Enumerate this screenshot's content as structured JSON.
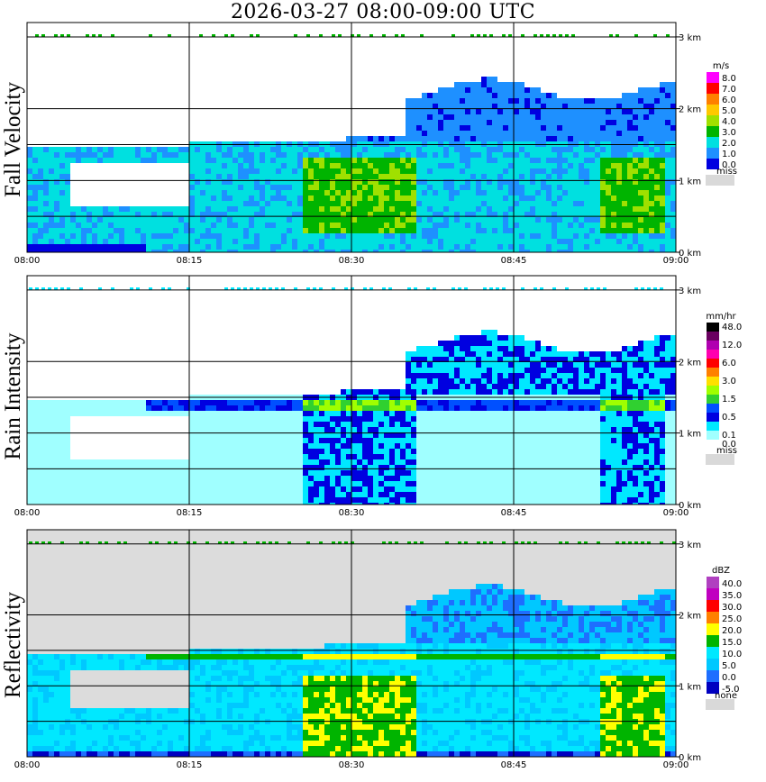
{
  "title": "2026-03-27   08:00-09:00 UTC",
  "time_ticks": [
    "08:00",
    "08:15",
    "08:30",
    "08:45",
    "09:00"
  ],
  "height_ticks": [
    "3 km",
    "2 km",
    "1 km",
    "0 km"
  ],
  "panels": [
    {
      "id": "fall-velocity",
      "label": "Fall Velocity",
      "unit": "m/s",
      "background": "#ffffff",
      "colorbar": [
        {
          "label": "8.0",
          "color": "#ff00ff"
        },
        {
          "label": "7.0",
          "color": "#ff0000"
        },
        {
          "label": "6.0",
          "color": "#ff8000"
        },
        {
          "label": "5.0",
          "color": "#ffc800"
        },
        {
          "label": "4.0",
          "color": "#a0e000"
        },
        {
          "label": "3.0",
          "color": "#00b400"
        },
        {
          "label": "2.0",
          "color": "#00e0e0"
        },
        {
          "label": "1.0",
          "color": "#1e90ff"
        },
        {
          "label": "0.0",
          "color": "#0000e0"
        }
      ],
      "miss_label": "miss",
      "miss_color": "#d9d9d9"
    },
    {
      "id": "rain-intensity",
      "label": "Rain Intensity",
      "unit": "mm/hr",
      "background": "#ffffff",
      "colorbar": [
        {
          "label": "48.0",
          "color": "#000000"
        },
        {
          "label": "",
          "color": "#6a0060"
        },
        {
          "label": "12.0",
          "color": "#b000b0"
        },
        {
          "label": "",
          "color": "#ff00b0"
        },
        {
          "label": "6.0",
          "color": "#ff0000"
        },
        {
          "label": "",
          "color": "#ff8000"
        },
        {
          "label": "3.0",
          "color": "#ffe000"
        },
        {
          "label": "",
          "color": "#a0ff00"
        },
        {
          "label": "1.5",
          "color": "#30d030"
        },
        {
          "label": "",
          "color": "#0050ff"
        },
        {
          "label": "0.5",
          "color": "#0000e0"
        },
        {
          "label": "",
          "color": "#00e8ff"
        },
        {
          "label": "0.1",
          "color": "#a0ffff"
        },
        {
          "label": "0.0",
          "color": "#ffffff"
        }
      ],
      "miss_label": "miss",
      "miss_color": "#d9d9d9"
    },
    {
      "id": "reflectivity",
      "label": "Reflectivity",
      "unit": "dBZ",
      "background": "#dcdcdc",
      "colorbar": [
        {
          "label": "40.0",
          "color": "#b040c0"
        },
        {
          "label": "35.0",
          "color": "#c000c0"
        },
        {
          "label": "30.0",
          "color": "#ff0000"
        },
        {
          "label": "25.0",
          "color": "#ff8000"
        },
        {
          "label": "20.0",
          "color": "#ffff00"
        },
        {
          "label": "15.0",
          "color": "#00b400"
        },
        {
          "label": "10.0",
          "color": "#00e8ff"
        },
        {
          "label": "5.0",
          "color": "#00c8ff"
        },
        {
          "label": "0.0",
          "color": "#1e6eff"
        },
        {
          "label": "-5.0",
          "color": "#0000c0"
        }
      ],
      "miss_label": "none",
      "miss_color": "#d9d9d9"
    }
  ],
  "chart_data": {
    "type": "heatmap",
    "title": "2026-03-27   08:00-09:00 UTC",
    "x_range": [
      "08:00",
      "09:00"
    ],
    "y_range_km": [
      0,
      3.2
    ],
    "xticks": [
      "08:00",
      "08:15",
      "08:30",
      "08:45",
      "09:00"
    ],
    "yticks_km": [
      0,
      1,
      2,
      3
    ],
    "grid": true,
    "features": [
      {
        "name": "bright band",
        "height_km": 1.5,
        "from": "08:15",
        "to": "09:00"
      },
      {
        "name": "precipitation top",
        "height_km": 2.4,
        "from": "08:35",
        "to": "08:58"
      }
    ]
  }
}
